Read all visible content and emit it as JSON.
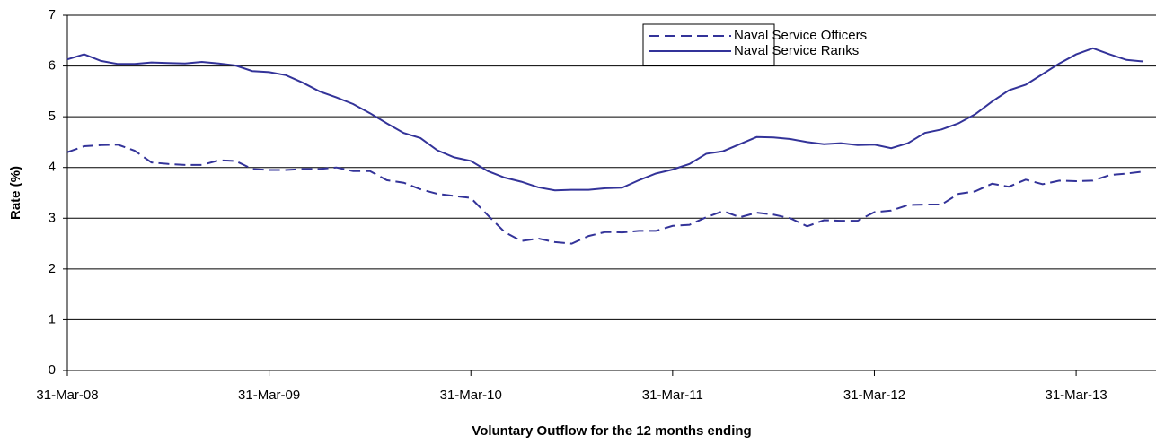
{
  "chart_data": {
    "type": "line",
    "x_label": "Voluntary Outflow for the 12 months ending",
    "y_label": "Rate (%)",
    "categories": [
      "31-Mar-08",
      null,
      null,
      null,
      null,
      null,
      null,
      null,
      null,
      null,
      null,
      null,
      "31-Mar-09",
      null,
      null,
      null,
      null,
      null,
      null,
      null,
      null,
      null,
      null,
      null,
      "31-Mar-10",
      null,
      null,
      null,
      null,
      null,
      null,
      null,
      null,
      null,
      null,
      null,
      "31-Mar-11",
      null,
      null,
      null,
      null,
      null,
      null,
      null,
      null,
      null,
      null,
      null,
      "31-Mar-12",
      null,
      null,
      null,
      null,
      null,
      null,
      null,
      null,
      null,
      null,
      null,
      "31-Mar-13",
      null,
      null,
      null,
      null
    ],
    "series": [
      {
        "name": "Naval Service Officers",
        "color": "#333399",
        "style": "dashed",
        "values": [
          4.3,
          4.42,
          4.44,
          4.45,
          4.33,
          4.1,
          4.07,
          4.05,
          4.05,
          4.14,
          4.13,
          3.97,
          3.95,
          3.95,
          3.97,
          3.97,
          4.0,
          3.93,
          3.93,
          3.75,
          3.7,
          3.57,
          3.48,
          3.44,
          3.4,
          3.06,
          2.73,
          2.55,
          2.6,
          2.53,
          2.5,
          2.65,
          2.73,
          2.72,
          2.75,
          2.75,
          2.85,
          2.87,
          3.02,
          3.14,
          3.02,
          3.11,
          3.07,
          3.0,
          2.84,
          2.96,
          2.95,
          2.95,
          3.12,
          3.15,
          3.26,
          3.27,
          3.27,
          3.48,
          3.53,
          3.68,
          3.62,
          3.76,
          3.67,
          3.74,
          3.73,
          3.74,
          3.85,
          3.88,
          3.92
        ]
      },
      {
        "name": "Naval Service Ranks",
        "color": "#333399",
        "style": "solid",
        "values": [
          6.13,
          6.23,
          6.1,
          6.04,
          6.04,
          6.07,
          6.06,
          6.05,
          6.08,
          6.05,
          6.01,
          5.9,
          5.88,
          5.82,
          5.67,
          5.5,
          5.38,
          5.25,
          5.07,
          4.87,
          4.68,
          4.58,
          4.34,
          4.2,
          4.13,
          3.93,
          3.8,
          3.72,
          3.61,
          3.55,
          3.56,
          3.56,
          3.59,
          3.6,
          3.75,
          3.88,
          3.96,
          4.07,
          4.27,
          4.32,
          4.46,
          4.6,
          4.59,
          4.56,
          4.5,
          4.46,
          4.48,
          4.44,
          4.45,
          4.38,
          4.48,
          4.68,
          4.75,
          4.87,
          5.05,
          5.3,
          5.52,
          5.63,
          5.84,
          6.05,
          6.23,
          6.35,
          6.23,
          6.12,
          6.09
        ]
      }
    ],
    "ylim": [
      0,
      7
    ],
    "yticks": [
      0,
      1,
      2,
      3,
      4,
      5,
      6,
      7
    ],
    "grid": true,
    "legend": "top-right"
  }
}
